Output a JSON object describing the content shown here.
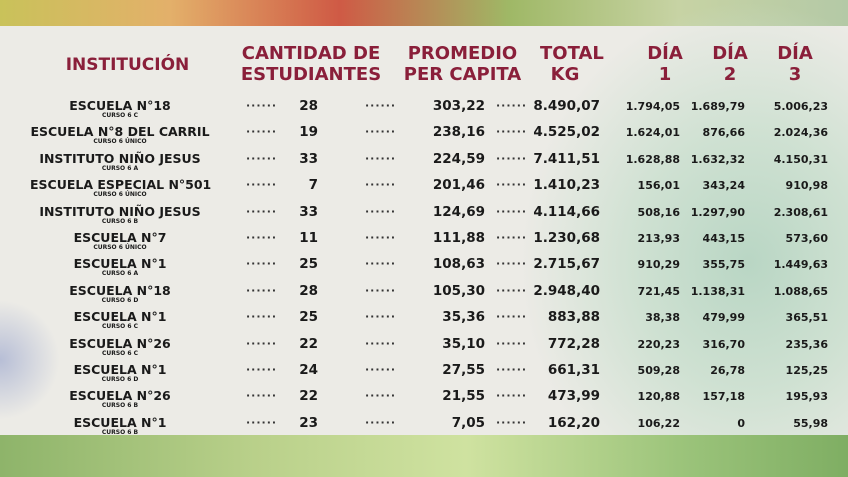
{
  "headers": {
    "institucion": "INSTITUCIÓN",
    "cantidad_1": "CANTIDAD DE",
    "cantidad_2": "ESTUDIANTES",
    "promedio_1": "PROMEDIO",
    "promedio_2": "PER CAPITA",
    "total_1": "TOTAL",
    "total_2": "KG",
    "dia_label": "DÍA",
    "dia1": "1",
    "dia2": "2",
    "dia3": "3"
  },
  "dots": "······",
  "rows": [
    {
      "name": "ESCUELA N°18",
      "curso": "CURSO 6 C",
      "cantidad": "28",
      "promedio": "303,22",
      "total": "8.490,07",
      "d1": "1.794,05",
      "d2": "1.689,79",
      "d3": "5.006,23"
    },
    {
      "name": "ESCUELA N°8 DEL CARRIL",
      "curso": "CURSO 6 ÚNICO",
      "cantidad": "19",
      "promedio": "238,16",
      "total": "4.525,02",
      "d1": "1.624,01",
      "d2": "876,66",
      "d3": "2.024,36"
    },
    {
      "name": "INSTITUTO NIÑO JESUS",
      "curso": "CURSO 6 A",
      "cantidad": "33",
      "promedio": "224,59",
      "total": "7.411,51",
      "d1": "1.628,88",
      "d2": "1.632,32",
      "d3": "4.150,31"
    },
    {
      "name": "ESCUELA ESPECIAL N°501",
      "curso": "CURSO 6 ÚNICO",
      "cantidad": "7",
      "promedio": "201,46",
      "total": "1.410,23",
      "d1": "156,01",
      "d2": "343,24",
      "d3": "910,98"
    },
    {
      "name": "INSTITUTO NIÑO JESUS",
      "curso": "CURSO 6 B",
      "cantidad": "33",
      "promedio": "124,69",
      "total": "4.114,66",
      "d1": "508,16",
      "d2": "1.297,90",
      "d3": "2.308,61"
    },
    {
      "name": "ESCUELA N°7",
      "curso": "CURSO 6 ÚNICO",
      "cantidad": "11",
      "promedio": "111,88",
      "total": "1.230,68",
      "d1": "213,93",
      "d2": "443,15",
      "d3": "573,60"
    },
    {
      "name": "ESCUELA N°1",
      "curso": "CURSO 6 A",
      "cantidad": "25",
      "promedio": "108,63",
      "total": "2.715,67",
      "d1": "910,29",
      "d2": "355,75",
      "d3": "1.449,63"
    },
    {
      "name": "ESCUELA N°18",
      "curso": "CURSO 6 D",
      "cantidad": "28",
      "promedio": "105,30",
      "total": "2.948,40",
      "d1": "721,45",
      "d2": "1.138,31",
      "d3": "1.088,65"
    },
    {
      "name": "ESCUELA N°1",
      "curso": "CURSO 6 C",
      "cantidad": "25",
      "promedio": "35,36",
      "total": "883,88",
      "d1": "38,38",
      "d2": "479,99",
      "d3": "365,51"
    },
    {
      "name": "ESCUELA N°26",
      "curso": "CURSO 6 C",
      "cantidad": "22",
      "promedio": "35,10",
      "total": "772,28",
      "d1": "220,23",
      "d2": "316,70",
      "d3": "235,36"
    },
    {
      "name": "ESCUELA N°1",
      "curso": "CURSO 6 D",
      "cantidad": "24",
      "promedio": "27,55",
      "total": "661,31",
      "d1": "509,28",
      "d2": "26,78",
      "d3": "125,25"
    },
    {
      "name": "ESCUELA N°26",
      "curso": "CURSO 6 B",
      "cantidad": "22",
      "promedio": "21,55",
      "total": "473,99",
      "d1": "120,88",
      "d2": "157,18",
      "d3": "195,93"
    },
    {
      "name": "ESCUELA N°1",
      "curso": "CURSO 6 B",
      "cantidad": "23",
      "promedio": "7,05",
      "total": "162,20",
      "d1": "106,22",
      "d2": "0",
      "d3": "55,98"
    }
  ]
}
